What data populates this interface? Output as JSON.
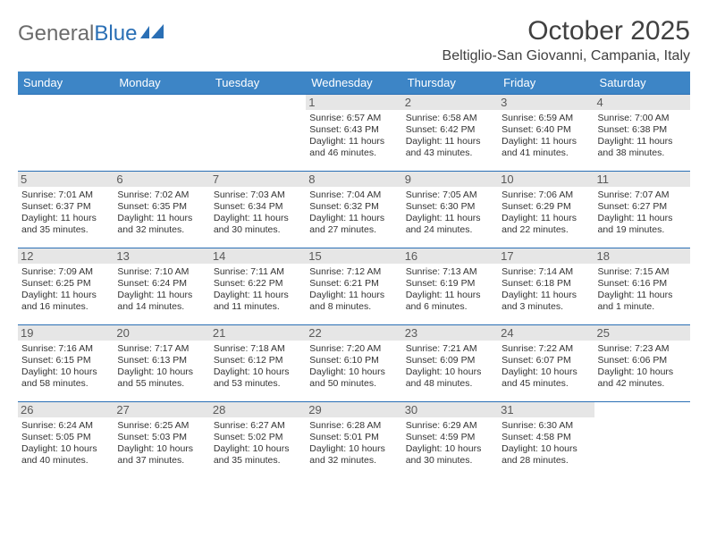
{
  "brand": {
    "part1": "General",
    "part2": "Blue"
  },
  "title": "October 2025",
  "location": "Beltiglio-San Giovanni, Campania, Italy",
  "header_bg": "#3d85c6",
  "border_color": "#2a6fb5",
  "days": [
    "Sunday",
    "Monday",
    "Tuesday",
    "Wednesday",
    "Thursday",
    "Friday",
    "Saturday"
  ],
  "weeks": [
    [
      null,
      null,
      null,
      {
        "n": "1",
        "sr": "6:57 AM",
        "ss": "6:43 PM",
        "dl": "11 hours and 46 minutes."
      },
      {
        "n": "2",
        "sr": "6:58 AM",
        "ss": "6:42 PM",
        "dl": "11 hours and 43 minutes."
      },
      {
        "n": "3",
        "sr": "6:59 AM",
        "ss": "6:40 PM",
        "dl": "11 hours and 41 minutes."
      },
      {
        "n": "4",
        "sr": "7:00 AM",
        "ss": "6:38 PM",
        "dl": "11 hours and 38 minutes."
      }
    ],
    [
      {
        "n": "5",
        "sr": "7:01 AM",
        "ss": "6:37 PM",
        "dl": "11 hours and 35 minutes."
      },
      {
        "n": "6",
        "sr": "7:02 AM",
        "ss": "6:35 PM",
        "dl": "11 hours and 32 minutes."
      },
      {
        "n": "7",
        "sr": "7:03 AM",
        "ss": "6:34 PM",
        "dl": "11 hours and 30 minutes."
      },
      {
        "n": "8",
        "sr": "7:04 AM",
        "ss": "6:32 PM",
        "dl": "11 hours and 27 minutes."
      },
      {
        "n": "9",
        "sr": "7:05 AM",
        "ss": "6:30 PM",
        "dl": "11 hours and 24 minutes."
      },
      {
        "n": "10",
        "sr": "7:06 AM",
        "ss": "6:29 PM",
        "dl": "11 hours and 22 minutes."
      },
      {
        "n": "11",
        "sr": "7:07 AM",
        "ss": "6:27 PM",
        "dl": "11 hours and 19 minutes."
      }
    ],
    [
      {
        "n": "12",
        "sr": "7:09 AM",
        "ss": "6:25 PM",
        "dl": "11 hours and 16 minutes."
      },
      {
        "n": "13",
        "sr": "7:10 AM",
        "ss": "6:24 PM",
        "dl": "11 hours and 14 minutes."
      },
      {
        "n": "14",
        "sr": "7:11 AM",
        "ss": "6:22 PM",
        "dl": "11 hours and 11 minutes."
      },
      {
        "n": "15",
        "sr": "7:12 AM",
        "ss": "6:21 PM",
        "dl": "11 hours and 8 minutes."
      },
      {
        "n": "16",
        "sr": "7:13 AM",
        "ss": "6:19 PM",
        "dl": "11 hours and 6 minutes."
      },
      {
        "n": "17",
        "sr": "7:14 AM",
        "ss": "6:18 PM",
        "dl": "11 hours and 3 minutes."
      },
      {
        "n": "18",
        "sr": "7:15 AM",
        "ss": "6:16 PM",
        "dl": "11 hours and 1 minute."
      }
    ],
    [
      {
        "n": "19",
        "sr": "7:16 AM",
        "ss": "6:15 PM",
        "dl": "10 hours and 58 minutes."
      },
      {
        "n": "20",
        "sr": "7:17 AM",
        "ss": "6:13 PM",
        "dl": "10 hours and 55 minutes."
      },
      {
        "n": "21",
        "sr": "7:18 AM",
        "ss": "6:12 PM",
        "dl": "10 hours and 53 minutes."
      },
      {
        "n": "22",
        "sr": "7:20 AM",
        "ss": "6:10 PM",
        "dl": "10 hours and 50 minutes."
      },
      {
        "n": "23",
        "sr": "7:21 AM",
        "ss": "6:09 PM",
        "dl": "10 hours and 48 minutes."
      },
      {
        "n": "24",
        "sr": "7:22 AM",
        "ss": "6:07 PM",
        "dl": "10 hours and 45 minutes."
      },
      {
        "n": "25",
        "sr": "7:23 AM",
        "ss": "6:06 PM",
        "dl": "10 hours and 42 minutes."
      }
    ],
    [
      {
        "n": "26",
        "sr": "6:24 AM",
        "ss": "5:05 PM",
        "dl": "10 hours and 40 minutes."
      },
      {
        "n": "27",
        "sr": "6:25 AM",
        "ss": "5:03 PM",
        "dl": "10 hours and 37 minutes."
      },
      {
        "n": "28",
        "sr": "6:27 AM",
        "ss": "5:02 PM",
        "dl": "10 hours and 35 minutes."
      },
      {
        "n": "29",
        "sr": "6:28 AM",
        "ss": "5:01 PM",
        "dl": "10 hours and 32 minutes."
      },
      {
        "n": "30",
        "sr": "6:29 AM",
        "ss": "4:59 PM",
        "dl": "10 hours and 30 minutes."
      },
      {
        "n": "31",
        "sr": "6:30 AM",
        "ss": "4:58 PM",
        "dl": "10 hours and 28 minutes."
      },
      null
    ]
  ],
  "labels": {
    "sunrise": "Sunrise: ",
    "sunset": "Sunset: ",
    "daylight": "Daylight: "
  }
}
